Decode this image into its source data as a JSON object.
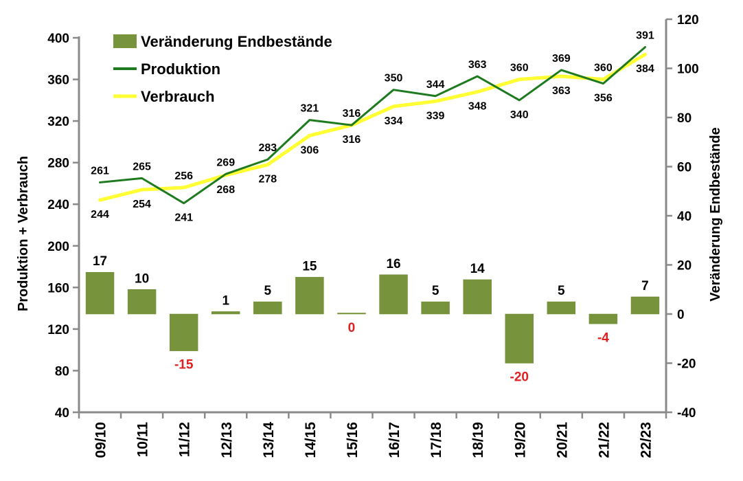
{
  "chart_data": {
    "type": "bar+line",
    "categories": [
      "09/10",
      "10/11",
      "11/12",
      "12/13",
      "13/14",
      "14/15",
      "15/16",
      "16/17",
      "17/18",
      "18/19",
      "19/20",
      "20/21",
      "21/22",
      "22/23"
    ],
    "series": [
      {
        "name": "Veränderung Endbestände",
        "type": "bar",
        "axis": "right",
        "color": "#77933c",
        "values": [
          17,
          10,
          -15,
          1,
          5,
          15,
          0,
          16,
          5,
          14,
          -20,
          5,
          -4,
          7
        ]
      },
      {
        "name": "Produktion",
        "type": "line",
        "axis": "left",
        "color": "#1e7a1e",
        "values": [
          261,
          265,
          241,
          269,
          283,
          321,
          316,
          350,
          344,
          363,
          340,
          369,
          356,
          391
        ]
      },
      {
        "name": "Verbrauch",
        "type": "line",
        "axis": "left",
        "color": "#ffff33",
        "values": [
          244,
          254,
          256,
          268,
          278,
          306,
          316,
          334,
          339,
          348,
          360,
          363,
          360,
          384
        ]
      }
    ],
    "line_labels": {
      "upper": [
        "261",
        "265",
        "256",
        "269",
        "283",
        "321",
        "316",
        "350",
        "344",
        "363",
        "360",
        "369",
        "360",
        "391"
      ],
      "lower": [
        "244",
        "254",
        "241",
        "268",
        "278",
        "306",
        "316",
        "334",
        "339",
        "348",
        "340",
        "363",
        "356",
        "384"
      ]
    },
    "bar_labels": [
      "17",
      "10",
      "-15",
      "1",
      "5",
      "15",
      "0",
      "16",
      "5",
      "14",
      "-20",
      "5",
      "-4",
      "7"
    ],
    "ylabel_left": "Produktion + Verbrauch",
    "ylabel_right": "Veränderung Endbestände",
    "ylim_left": [
      40,
      400
    ],
    "yticks_left": [
      "400",
      "360",
      "320",
      "280",
      "240",
      "200",
      "160",
      "120",
      "80",
      "40"
    ],
    "ylim_right": [
      -40,
      120
    ],
    "yticks_right": [
      "120",
      "100",
      "80",
      "60",
      "40",
      "20",
      "0",
      "-20",
      "-40"
    ],
    "grid": false,
    "legend_position": "top-left",
    "negative_label_color": "#e02020"
  }
}
